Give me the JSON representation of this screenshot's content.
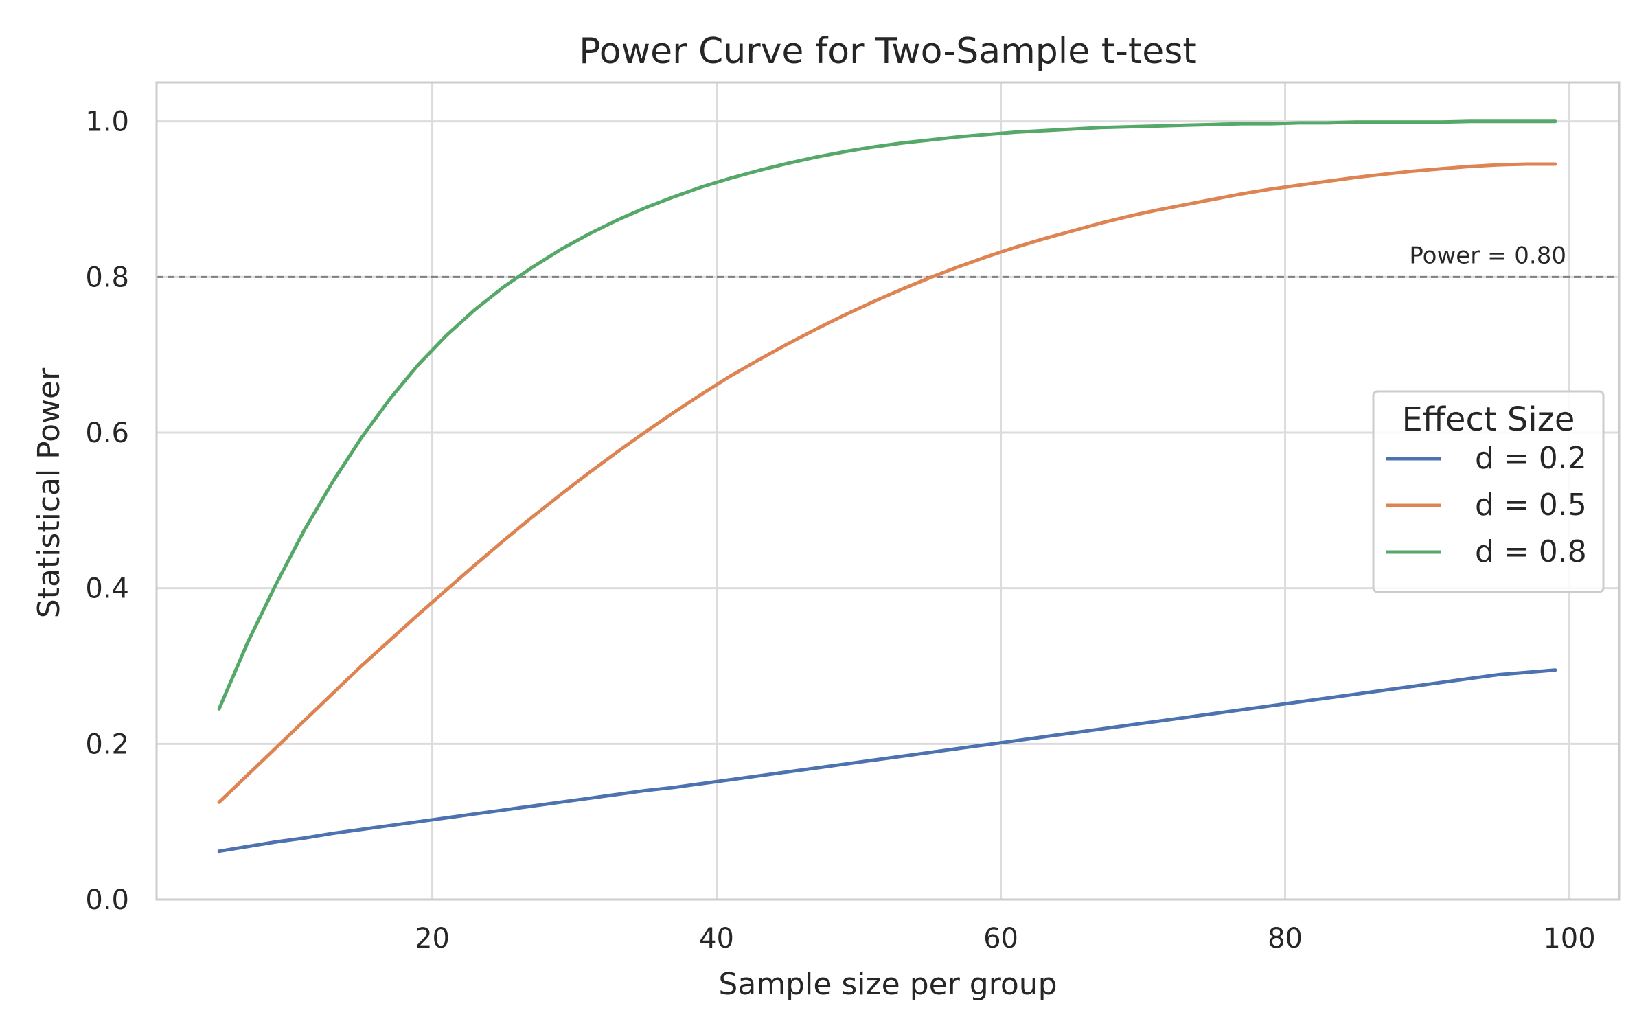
{
  "chart_data": {
    "type": "line",
    "title": "Power Curve for Two-Sample t-test",
    "xlabel": "Sample size per group",
    "ylabel": "Statistical Power",
    "xlim": [
      0.6,
      103.5
    ],
    "ylim": [
      0.0,
      1.05
    ],
    "x_ticks": [
      20,
      40,
      60,
      80,
      100
    ],
    "x_tick_labels": [
      "20",
      "40",
      "60",
      "80",
      "100"
    ],
    "y_ticks": [
      0.0,
      0.2,
      0.4,
      0.6,
      0.8,
      1.0
    ],
    "y_tick_labels": [
      "0.0",
      "0.2",
      "0.4",
      "0.6",
      "0.8",
      "1.0"
    ],
    "grid": true,
    "x": [
      5,
      7,
      9,
      11,
      13,
      15,
      17,
      19,
      21,
      23,
      25,
      27,
      29,
      31,
      33,
      35,
      37,
      39,
      41,
      43,
      45,
      47,
      49,
      51,
      53,
      55,
      57,
      59,
      61,
      63,
      65,
      67,
      69,
      71,
      73,
      75,
      77,
      79,
      81,
      83,
      85,
      87,
      89,
      91,
      93,
      95,
      97,
      99
    ],
    "series": [
      {
        "name": "d = 0.2",
        "color": "#4C72B0",
        "values": [
          0.062,
          0.068,
          0.074,
          0.079,
          0.085,
          0.09,
          0.095,
          0.1,
          0.105,
          0.11,
          0.115,
          0.12,
          0.125,
          0.13,
          0.135,
          0.14,
          0.144,
          0.149,
          0.154,
          0.159,
          0.164,
          0.169,
          0.174,
          0.179,
          0.184,
          0.189,
          0.194,
          0.199,
          0.204,
          0.209,
          0.214,
          0.219,
          0.224,
          0.229,
          0.234,
          0.239,
          0.244,
          0.249,
          0.254,
          0.259,
          0.264,
          0.269,
          0.274,
          0.279,
          0.284,
          0.289,
          0.292,
          0.295
        ]
      },
      {
        "name": "d = 0.5",
        "color": "#DD8452",
        "values": [
          0.125,
          0.16,
          0.195,
          0.23,
          0.265,
          0.3,
          0.333,
          0.366,
          0.398,
          0.43,
          0.461,
          0.491,
          0.52,
          0.548,
          0.575,
          0.601,
          0.626,
          0.65,
          0.673,
          0.694,
          0.714,
          0.733,
          0.751,
          0.768,
          0.784,
          0.799,
          0.813,
          0.826,
          0.838,
          0.849,
          0.859,
          0.869,
          0.878,
          0.886,
          0.893,
          0.9,
          0.907,
          0.913,
          0.918,
          0.923,
          0.928,
          0.932,
          0.936,
          0.939,
          0.942,
          0.944,
          0.945,
          0.945
        ]
      },
      {
        "name": "d = 0.8",
        "color": "#55A868",
        "values": [
          0.245,
          0.33,
          0.405,
          0.475,
          0.537,
          0.593,
          0.643,
          0.687,
          0.725,
          0.758,
          0.787,
          0.812,
          0.835,
          0.855,
          0.873,
          0.889,
          0.903,
          0.916,
          0.927,
          0.937,
          0.946,
          0.954,
          0.961,
          0.967,
          0.972,
          0.976,
          0.98,
          0.983,
          0.986,
          0.988,
          0.99,
          0.992,
          0.993,
          0.994,
          0.995,
          0.996,
          0.997,
          0.997,
          0.998,
          0.998,
          0.999,
          0.999,
          0.999,
          0.999,
          1.0,
          1.0,
          1.0,
          1.0
        ]
      }
    ],
    "reference_line": {
      "y": 0.8,
      "label": "Power = 0.80",
      "color": "#7f7f7f"
    },
    "legend": {
      "title": "Effect Size",
      "placement": "center-right"
    }
  }
}
